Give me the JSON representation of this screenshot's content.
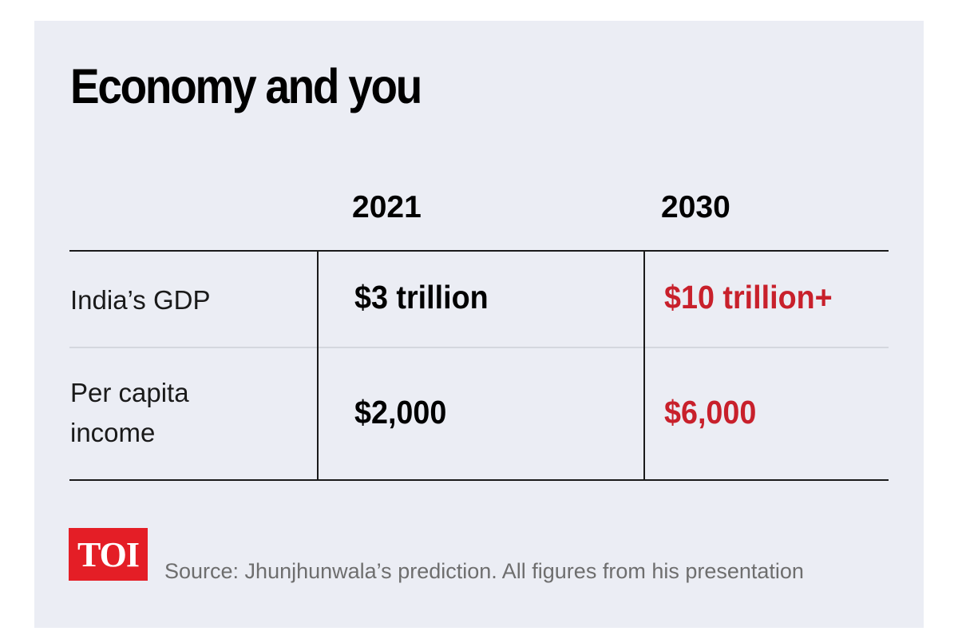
{
  "chart_data": {
    "type": "table",
    "title": "Economy and you",
    "columns": [
      "2021",
      "2030"
    ],
    "rows": [
      {
        "label": "India’s GDP",
        "values": [
          "$3 trillion",
          "$10 trillion+"
        ]
      },
      {
        "label": "Per capita income",
        "values": [
          "$2,000",
          "$6,000"
        ]
      }
    ],
    "highlight_column": "2030"
  },
  "footer": {
    "logo_text": "TOI",
    "source": "Source: Jhunjhunwala’s prediction. All figures from his presentation"
  },
  "colors": {
    "background": "#ebedf4",
    "text": "#000000",
    "highlight": "#c8202b",
    "logo_bg": "#e41e26",
    "source_text": "#6e6e6e"
  }
}
